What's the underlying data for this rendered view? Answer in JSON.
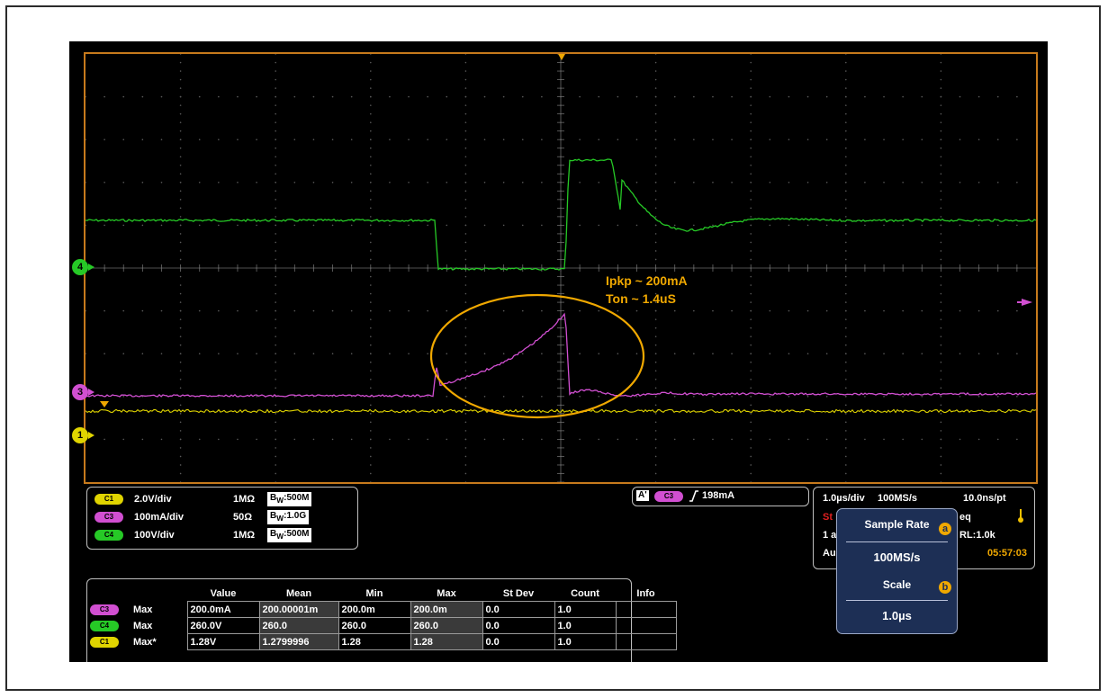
{
  "channels": {
    "c1": {
      "label": "C1",
      "scale": "2.0V/div",
      "impedance": "1MΩ",
      "bw_prefix": "B",
      "bw_sub": "W",
      "bw_value": ":500M",
      "color": "#e0d400"
    },
    "c3": {
      "label": "C3",
      "scale": "100mA/div",
      "impedance": "50Ω",
      "bw_prefix": "B",
      "bw_sub": "W",
      "bw_value": ":1.0G",
      "color": "#d14fd1"
    },
    "c4": {
      "label": "C4",
      "scale": "100V/div",
      "impedance": "1MΩ",
      "bw_prefix": "B",
      "bw_sub": "W",
      "bw_value": ":500M",
      "color": "#26c926"
    }
  },
  "markers": {
    "ch4": "4",
    "ch3": "3",
    "ch1": "1"
  },
  "annotation": {
    "line1": "Ipkp ~ 200mA",
    "line2": "Ton ~ 1.4uS"
  },
  "trigger": {
    "a_label": "A'",
    "channel": "C3",
    "level": "198mA",
    "edge_icon": "rising-edge-icon"
  },
  "acquisition": {
    "time_div": "1.0µs/div",
    "sample_rate": "100MS/s",
    "ns_per_pt": "10.0ns/pt",
    "status_partial": "St",
    "line2_partial": "1 a",
    "line3_partial": "Au",
    "eq_partial": "eq",
    "record_length": "RL:1.0k",
    "time": "05:57:03",
    "status_color": "#e02020"
  },
  "popup": {
    "sample_rate_title": "Sample Rate",
    "sample_rate_badge": "a",
    "sample_rate_value": "100MS/s",
    "scale_title": "Scale",
    "scale_badge": "b",
    "scale_value": "1.0µs"
  },
  "measurements": {
    "headers": [
      "",
      "",
      "Value",
      "Mean",
      "Min",
      "Max",
      "St Dev",
      "Count",
      "Info"
    ],
    "rows": [
      {
        "channel": "C3",
        "type": "Max",
        "value": "200.0mA",
        "mean": "200.00001m",
        "min": "200.0m",
        "max": "200.0m",
        "stdev": "0.0",
        "count": "1.0",
        "info": ""
      },
      {
        "channel": "C4",
        "type": "Max",
        "value": "260.0V",
        "mean": "260.0",
        "min": "260.0",
        "max": "260.0",
        "stdev": "0.0",
        "count": "1.0",
        "info": ""
      },
      {
        "channel": "C1",
        "type": "Max*",
        "value": "1.28V",
        "mean": "1.2799996",
        "min": "1.28",
        "max": "1.28",
        "stdev": "0.0",
        "count": "1.0",
        "info": ""
      }
    ]
  },
  "colors": {
    "grid_border": "#c77a1c",
    "annotation": "#f0a800",
    "popup_bg": "#1d2f55"
  }
}
